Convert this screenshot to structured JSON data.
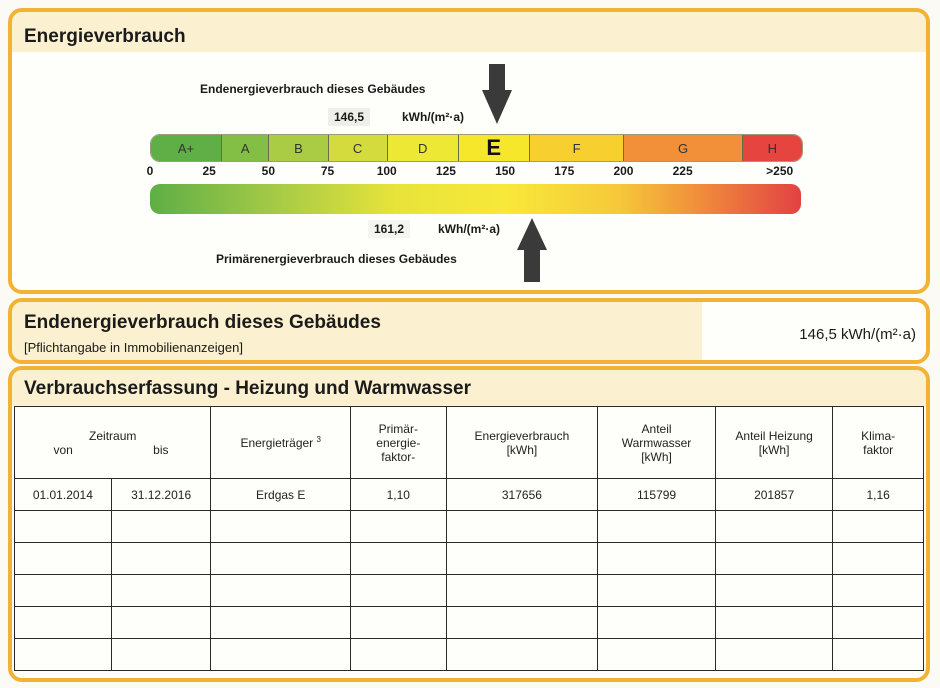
{
  "panel1": {
    "title": "Energieverbrauch",
    "end_label": "Endenergieverbrauch dieses Gebäudes",
    "end_value": "146,5",
    "end_unit": "kWh/(m²·a)",
    "primary_value": "161,2",
    "primary_unit": "kWh/(m²·a)",
    "primary_label": "Primärenergieverbrauch dieses Gebäudes",
    "scale_max": 275,
    "end_marker": 146.5,
    "primary_marker": 161.2,
    "classes": [
      {
        "label": "A+",
        "from": 0,
        "to": 30,
        "color": "#5fae46"
      },
      {
        "label": "A",
        "from": 30,
        "to": 50,
        "color": "#84bf45"
      },
      {
        "label": "B",
        "from": 50,
        "to": 75,
        "color": "#aacc45"
      },
      {
        "label": "C",
        "from": 75,
        "to": 100,
        "color": "#d3dc3c"
      },
      {
        "label": "D",
        "from": 100,
        "to": 130,
        "color": "#ede834"
      },
      {
        "label": "E",
        "from": 130,
        "to": 160,
        "color": "#f6e72a",
        "selected": true
      },
      {
        "label": "F",
        "from": 160,
        "to": 200,
        "color": "#f7d030"
      },
      {
        "label": "G",
        "from": 200,
        "to": 250,
        "color": "#f19038"
      },
      {
        "label": "H",
        "from": 250,
        "to": 275,
        "color": "#e6453f"
      }
    ],
    "ticks": [
      {
        "label": "0",
        "v": 0
      },
      {
        "label": "25",
        "v": 25
      },
      {
        "label": "50",
        "v": 50
      },
      {
        "label": "75",
        "v": 75
      },
      {
        "label": "100",
        "v": 100
      },
      {
        "label": "125",
        "v": 125
      },
      {
        "label": "150",
        "v": 150
      },
      {
        "label": "175",
        "v": 175
      },
      {
        "label": "200",
        "v": 200
      },
      {
        "label": "225",
        "v": 225
      },
      {
        "label": ">250",
        "v": 266
      }
    ]
  },
  "panel2": {
    "title": "Endenergieverbrauch dieses Gebäudes",
    "subtitle": "[Pflichtangabe in Immobilienanzeigen]",
    "value": "146,5 kWh/(m²·a)"
  },
  "panel3": {
    "title": "Verbrauchserfassung - Heizung und Warmwasser",
    "headers": {
      "zeitraum": "Zeitraum",
      "von": "von",
      "bis": "bis",
      "energietraeger": "Energieträger",
      "energietraeger_sup": "3",
      "primaer": [
        "Primär-",
        "energie-",
        "faktor-"
      ],
      "energieverbrauch": [
        "Energieverbrauch",
        "[kWh]"
      ],
      "warmwasser": [
        "Anteil",
        "Warmwasser",
        "[kWh]"
      ],
      "heizung": [
        "Anteil Heizung",
        "[kWh]"
      ],
      "klima": [
        "Klima-",
        "faktor"
      ]
    },
    "rows": [
      [
        "01.01.2014",
        "31.12.2016",
        "Erdgas E",
        "1,10",
        "317656",
        "115799",
        "201857",
        "1,16"
      ],
      [
        "",
        "",
        "",
        "",
        "",
        "",
        "",
        ""
      ],
      [
        "",
        "",
        "",
        "",
        "",
        "",
        "",
        ""
      ],
      [
        "",
        "",
        "",
        "",
        "",
        "",
        "",
        ""
      ],
      [
        "",
        "",
        "",
        "",
        "",
        "",
        "",
        ""
      ],
      [
        "",
        "",
        "",
        "",
        "",
        "",
        "",
        ""
      ]
    ]
  }
}
